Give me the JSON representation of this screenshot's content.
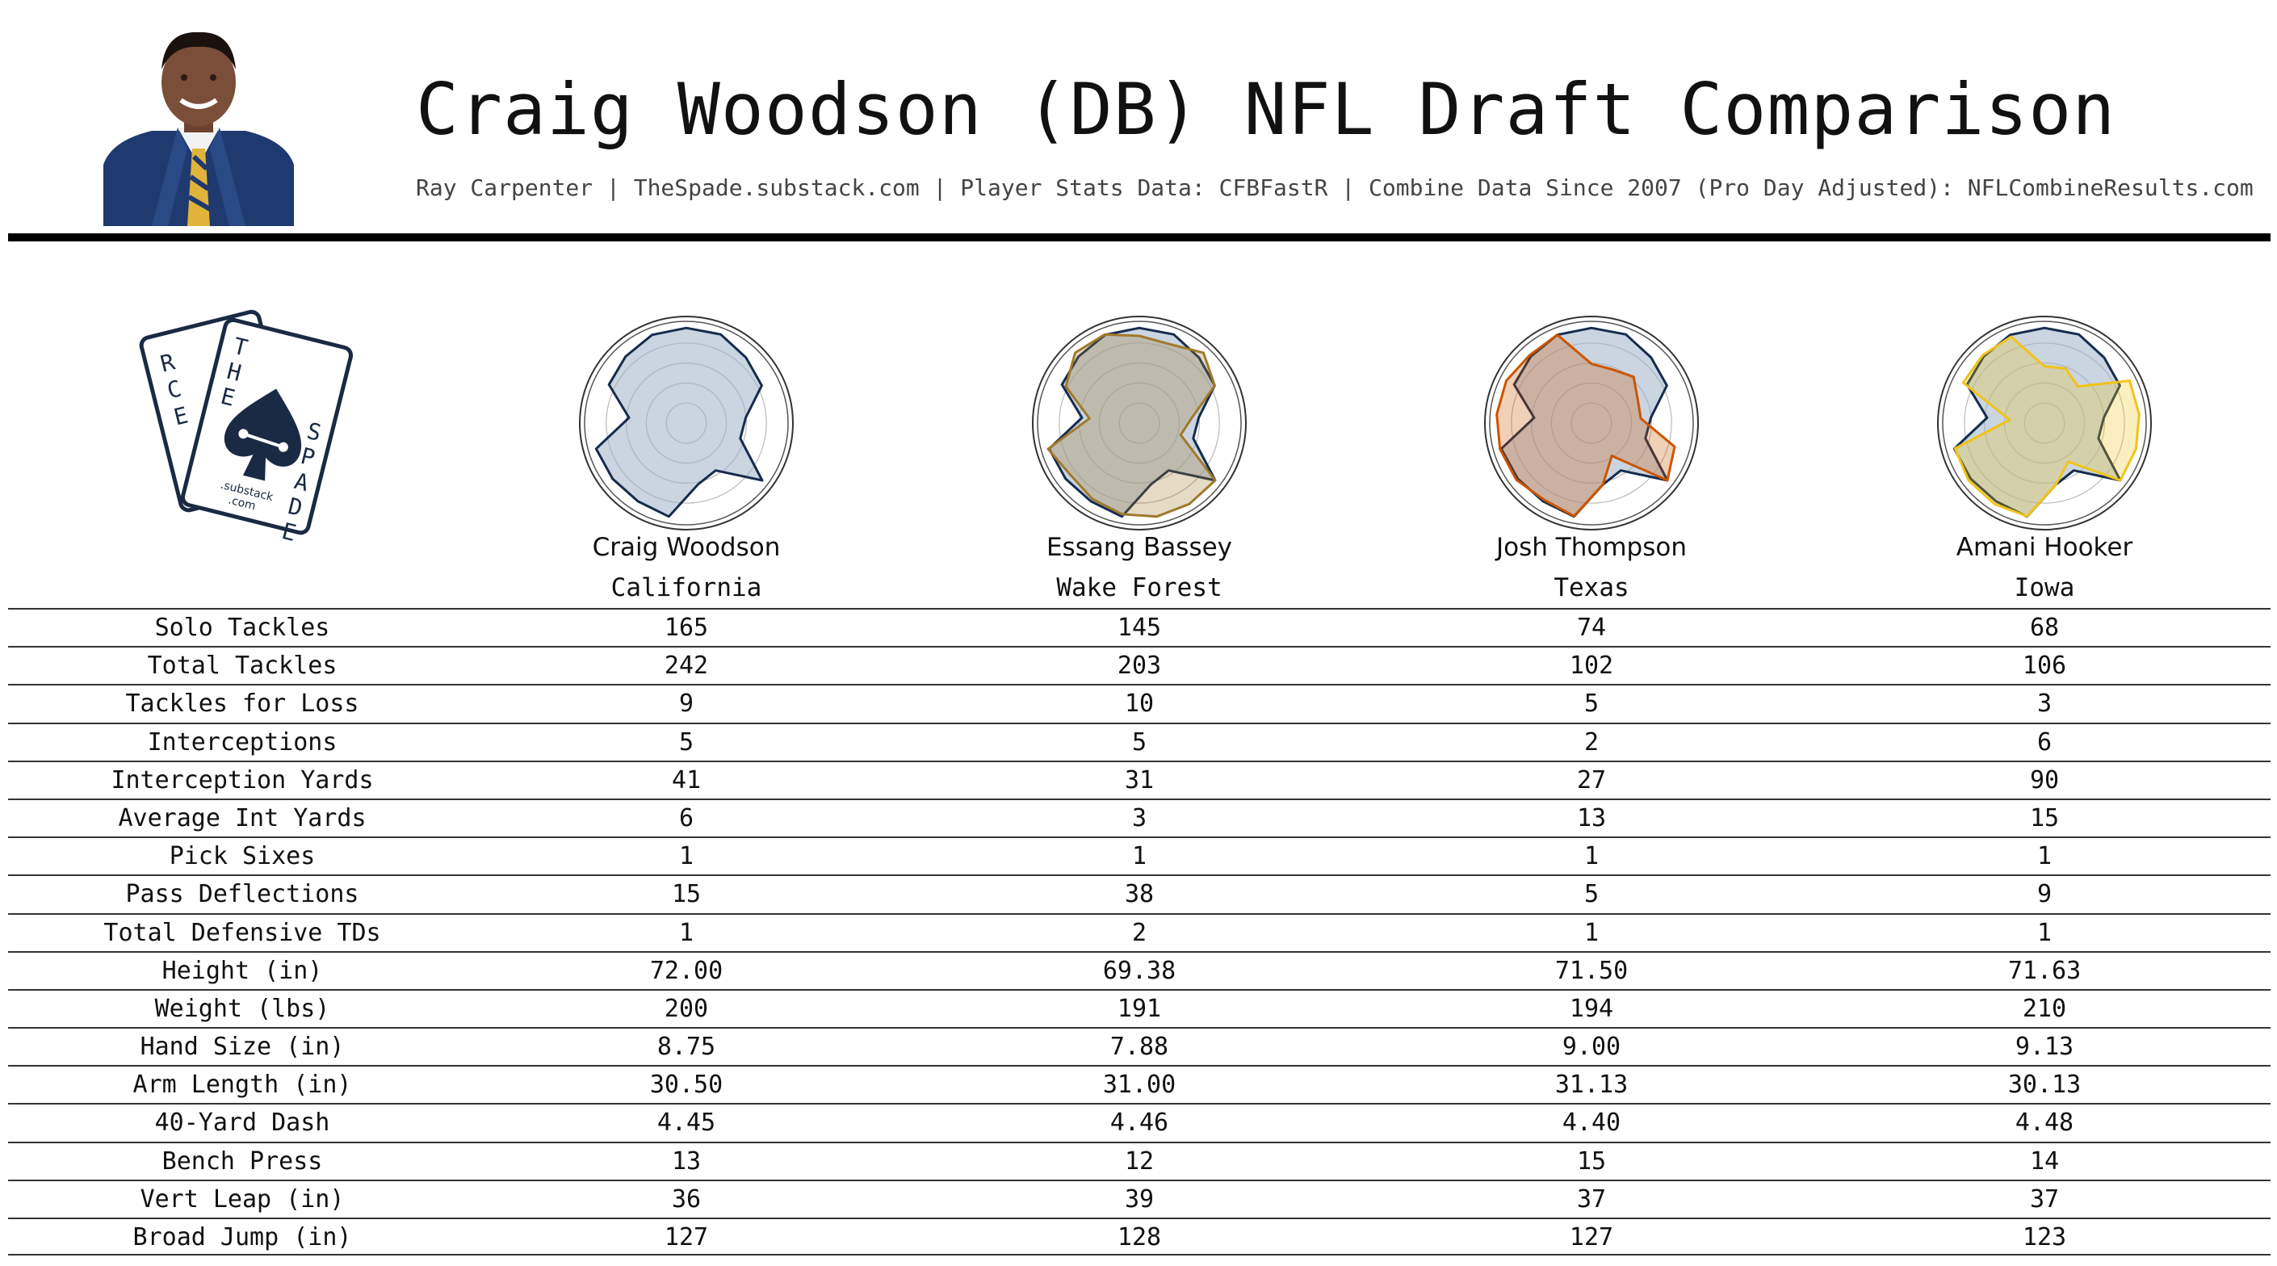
{
  "title": "Craig Woodson (DB) NFL Draft Comparison",
  "subtitle": "Ray Carpenter | TheSpade.substack.com | Player Stats Data: CFBFastR | Combine Data Since 2007 (Pro Day Adjusted): NFLCombineResults.com",
  "logo": {
    "card_back_letters": [
      "R",
      "C",
      "E"
    ],
    "card_front_letters": [
      "T",
      "H",
      "E",
      "S",
      "P",
      "A",
      "D",
      "E"
    ],
    "small_text_1": ".substack",
    "small_text_2": ".com",
    "color": "#1a2a44"
  },
  "chart_data": {
    "type": "radar",
    "colors": {
      "base_fill": "#9fb3c8",
      "base_stroke": "#162c4e",
      "Essang Bassey": "#a07a2c",
      "Josh Thompson": "#cc5500",
      "Amani Hooker": "#f0c419"
    },
    "players": [
      {
        "name": "Craig Woodson",
        "school": "California",
        "comparison_color": null
      },
      {
        "name": "Essang Bassey",
        "school": "Wake Forest",
        "comparison_color": "#a07a2c"
      },
      {
        "name": "Josh Thompson",
        "school": "Texas",
        "comparison_color": "#cc5500"
      },
      {
        "name": "Amani Hooker",
        "school": "Iowa",
        "comparison_color": "#f0c419"
      }
    ],
    "metrics": [
      {
        "label": "Solo Tackles",
        "values": [
          "165",
          "145",
          "74",
          "68"
        ]
      },
      {
        "label": "Total Tackles",
        "values": [
          "242",
          "203",
          "102",
          "106"
        ]
      },
      {
        "label": "Tackles for Loss",
        "values": [
          "9",
          "10",
          "5",
          "3"
        ]
      },
      {
        "label": "Interceptions",
        "values": [
          "5",
          "5",
          "2",
          "6"
        ]
      },
      {
        "label": "Interception Yards",
        "values": [
          "41",
          "31",
          "27",
          "90"
        ]
      },
      {
        "label": "Average Int Yards",
        "values": [
          "6",
          "3",
          "13",
          "15"
        ]
      },
      {
        "label": "Pick Sixes",
        "values": [
          "1",
          "1",
          "1",
          "1"
        ]
      },
      {
        "label": "Pass Deflections",
        "values": [
          "15",
          "38",
          "5",
          "9"
        ]
      },
      {
        "label": "Total Defensive TDs",
        "values": [
          "1",
          "2",
          "1",
          "1"
        ]
      },
      {
        "label": "Height (in)",
        "values": [
          "72.00",
          "69.38",
          "71.50",
          "71.63"
        ]
      },
      {
        "label": "Weight (lbs)",
        "values": [
          "200",
          "191",
          "194",
          "210"
        ]
      },
      {
        "label": "Hand Size (in)",
        "values": [
          "8.75",
          "7.88",
          "9.00",
          "9.13"
        ]
      },
      {
        "label": "Arm Length (in)",
        "values": [
          "30.50",
          "31.00",
          "31.13",
          "30.13"
        ]
      },
      {
        "label": "40-Yard Dash",
        "values": [
          "4.45",
          "4.46",
          "4.40",
          "4.48"
        ]
      },
      {
        "label": "Bench Press",
        "values": [
          "13",
          "12",
          "15",
          "14"
        ]
      },
      {
        "label": "Vert Leap (in)",
        "values": [
          "36",
          "39",
          "37",
          "37"
        ]
      },
      {
        "label": "Broad Jump (in)",
        "values": [
          "127",
          "128",
          "127",
          "123"
        ]
      }
    ]
  }
}
